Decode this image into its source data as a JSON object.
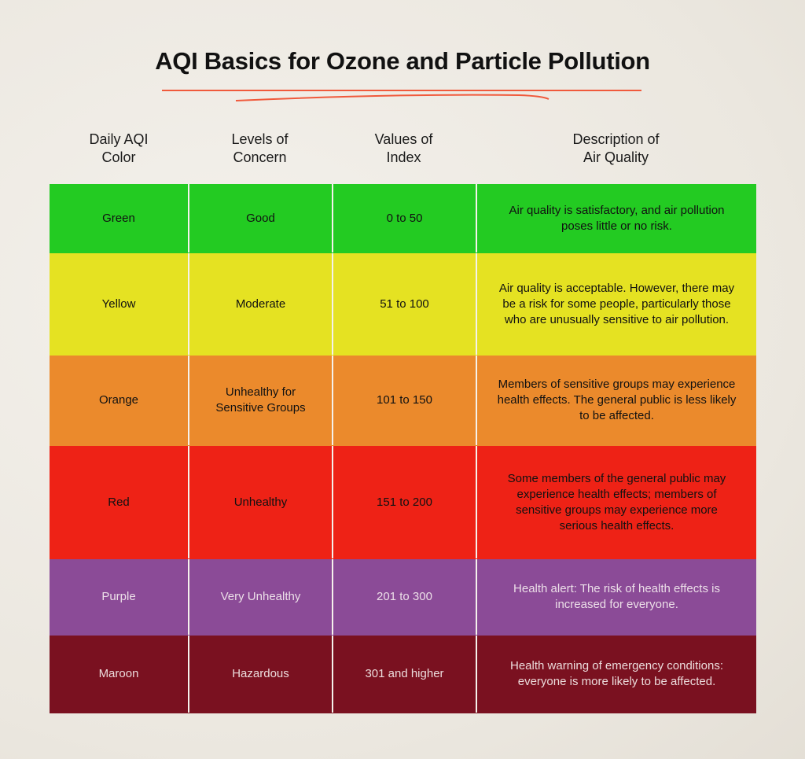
{
  "title": "AQI Basics for Ozone and Particle Pollution",
  "accent_color": "#f05a3c",
  "headers": [
    "Daily AQI Color",
    "Levels of Concern",
    "Values of Index",
    "Description of Air Quality"
  ],
  "header_lines": [
    [
      "Daily AQI",
      "Color"
    ],
    [
      "Levels of",
      "Concern"
    ],
    [
      "Values of",
      "Index"
    ],
    [
      "Description of",
      "Air Quality"
    ]
  ],
  "rows": [
    {
      "color": "Green",
      "level": "Good",
      "values": "0 to 50",
      "description": "Air quality is satisfactory, and air pollution poses little or no risk.",
      "bg": "#23cb22",
      "text": "#111111"
    },
    {
      "color": "Yellow",
      "level": "Moderate",
      "values": "51 to 100",
      "description": "Air quality is acceptable. However, there may be a risk for some people, particularly those who are unusually sensitive to air pollution.",
      "bg": "#e5e222",
      "text": "#111111"
    },
    {
      "color": "Orange",
      "level": "Unhealthy for Sensitive Groups",
      "values": "101 to 150",
      "description": "Members of sensitive groups may experience health effects. The general public is less likely to be affected.",
      "bg": "#eb8a2c",
      "text": "#111111"
    },
    {
      "color": "Red",
      "level": "Unhealthy",
      "values": "151 to 200",
      "description": "Some members of the general public may experience health effects; members of sensitive groups may experience more serious health effects.",
      "bg": "#ee2216",
      "text": "#111111"
    },
    {
      "color": "Purple",
      "level": "Very Unhealthy",
      "values": "201 to 300",
      "description": "Health alert: The risk of health effects is increased for everyone.",
      "bg": "#8b4b97",
      "text": "#ecdfe8"
    },
    {
      "color": "Maroon",
      "level": "Hazardous",
      "values": "301 and higher",
      "description": "Health warning of emergency conditions: everyone is more likely to be affected.",
      "bg": "#7a1120",
      "text": "#ecdcdc"
    }
  ]
}
